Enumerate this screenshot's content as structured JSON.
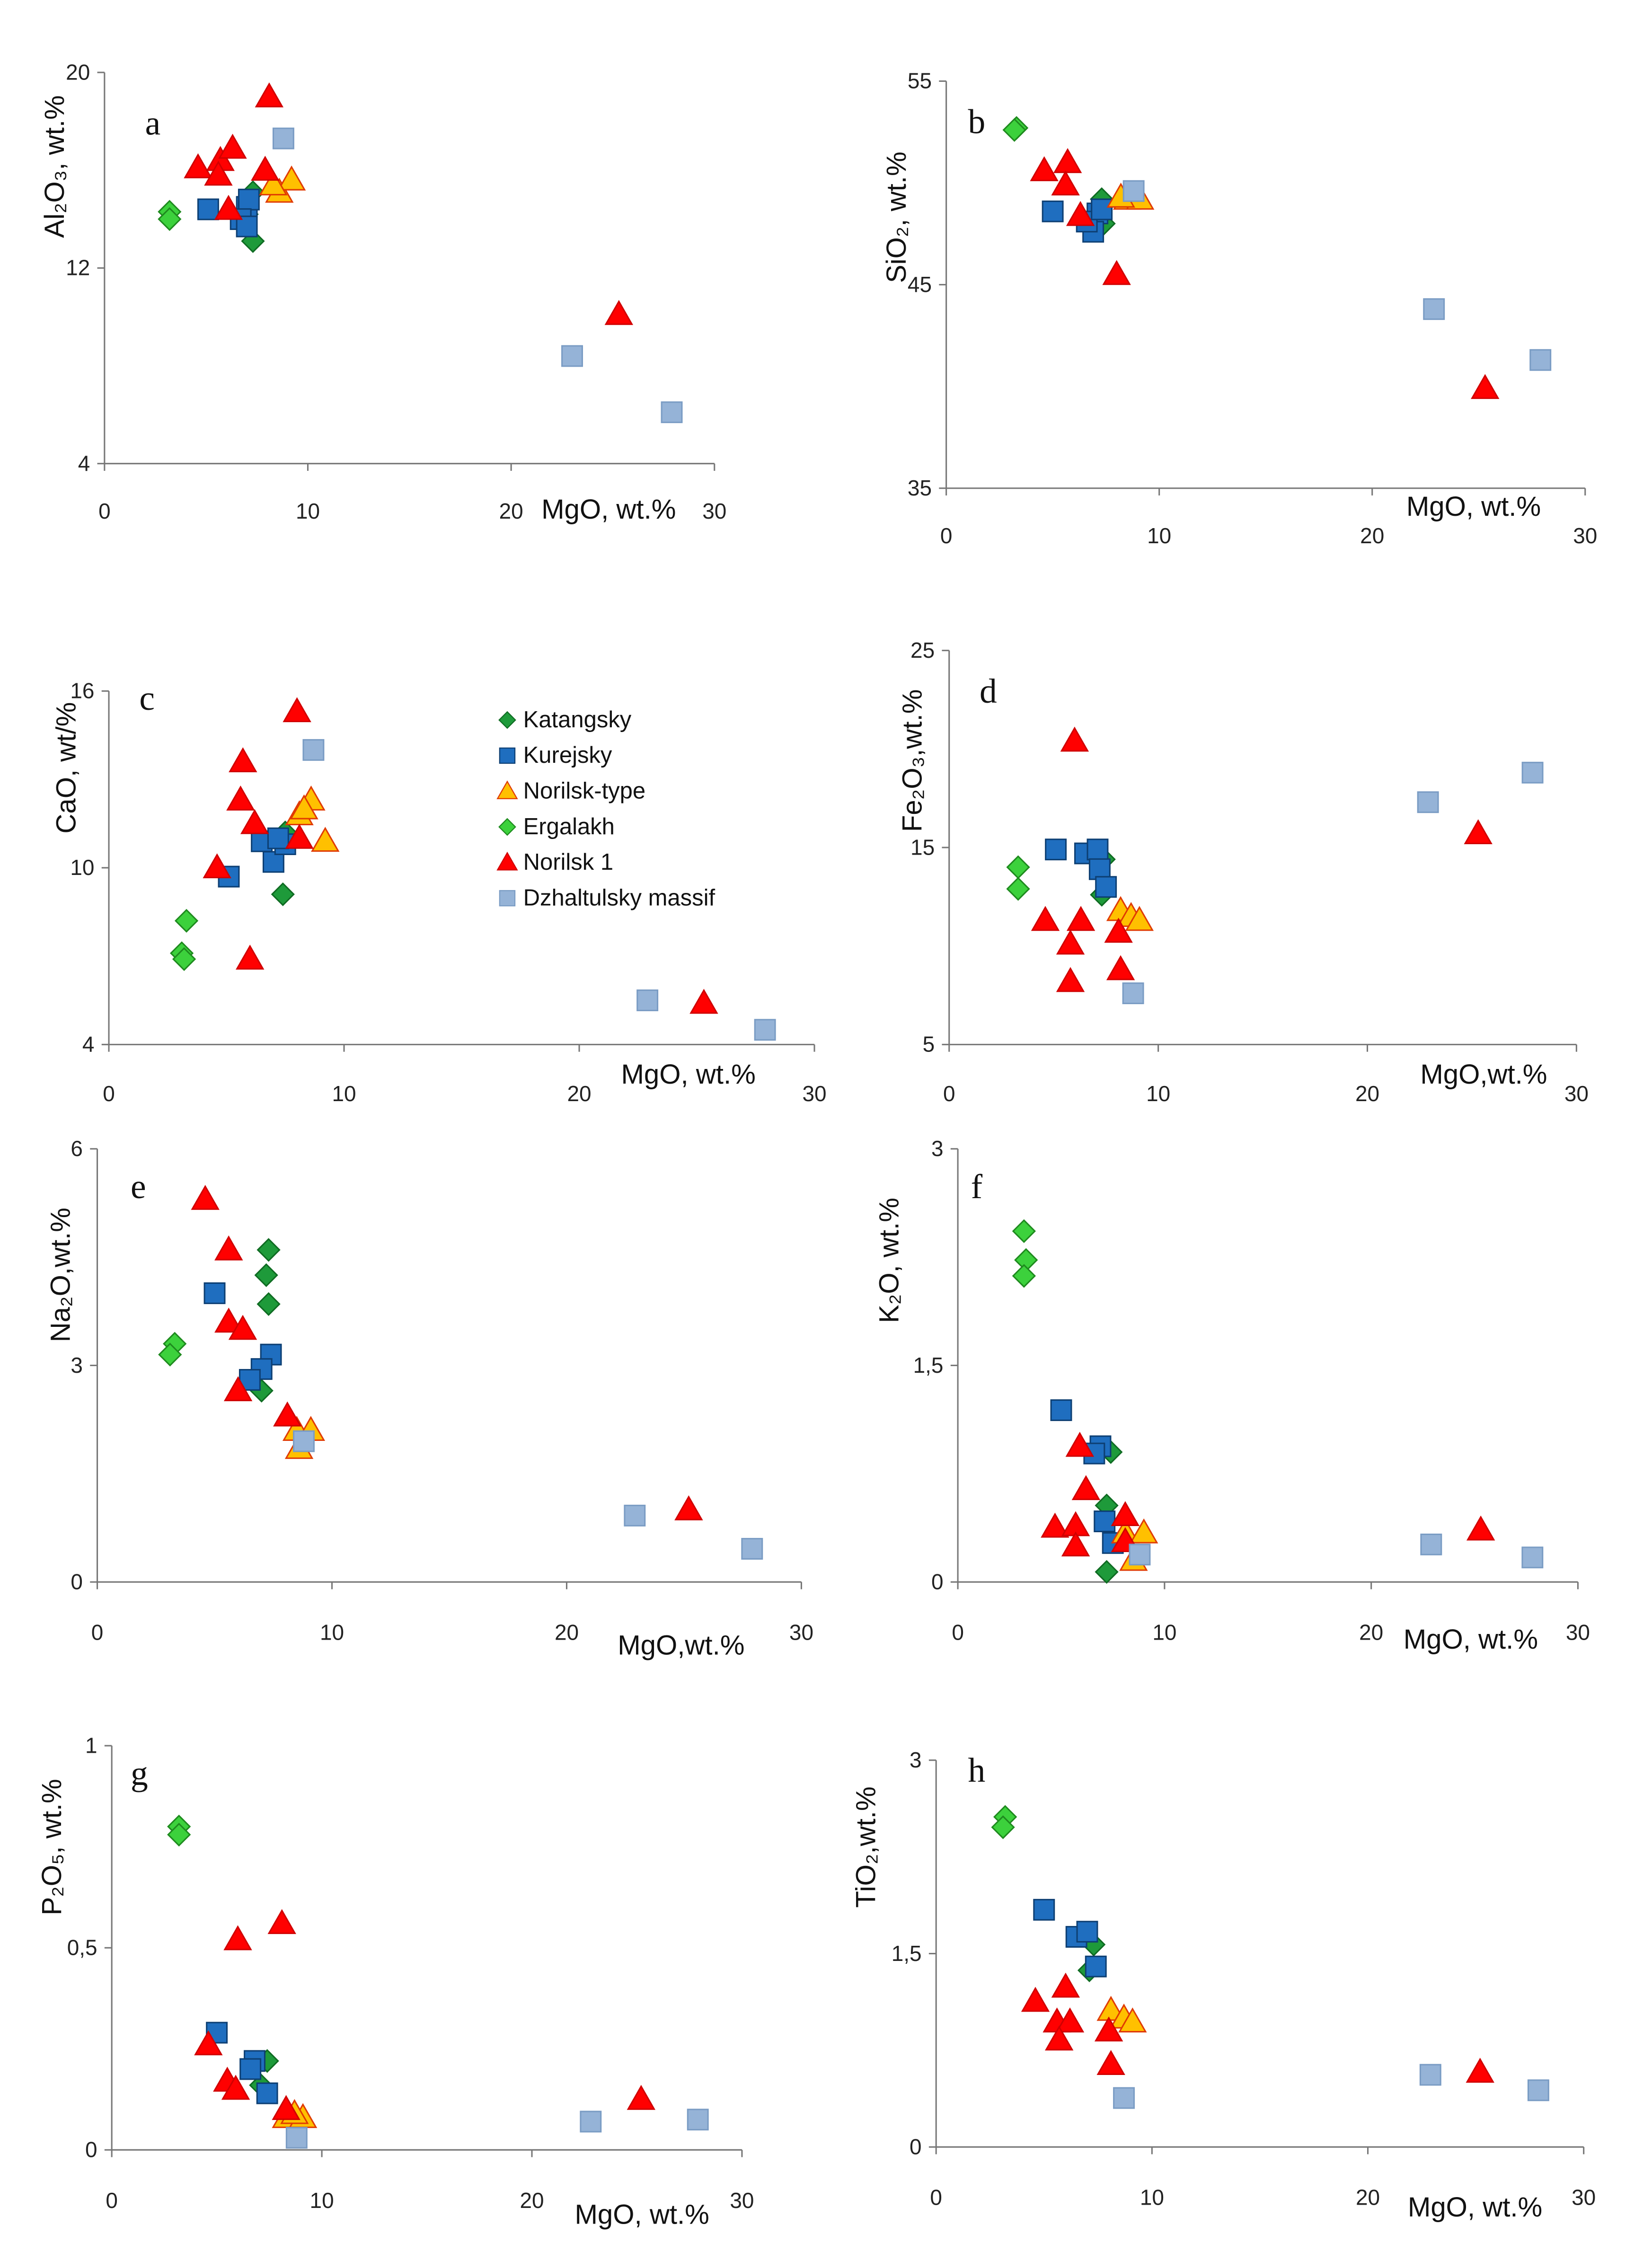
{
  "chart_data": [
    {
      "type": "scatter",
      "letter": "a",
      "ylabel": "Al₂O₃, wt.%",
      "xlabel": "MgO, wt.%",
      "xlim": [
        0,
        30
      ],
      "ylim": [
        4,
        20
      ],
      "xticks": [
        "0",
        "10",
        "20",
        "30"
      ],
      "yticks": [
        "4",
        "12",
        "20"
      ],
      "series": {
        "Katangsky": [
          [
            7.3,
            15.1
          ],
          [
            7.3,
            13.1
          ],
          [
            7.0,
            14.2
          ]
        ],
        "Kurejsky": [
          [
            5.1,
            14.4
          ],
          [
            7.0,
            14.5
          ],
          [
            7.1,
            14.8
          ],
          [
            6.7,
            14.0
          ],
          [
            7.0,
            13.7
          ]
        ],
        "Norilsk-type": [
          [
            8.6,
            15.1
          ],
          [
            9.2,
            15.6
          ],
          [
            8.3,
            15.4
          ]
        ],
        "Ergalakh": [
          [
            3.2,
            14.3
          ],
          [
            3.2,
            14.0
          ]
        ],
        "Norilsk 1": [
          [
            8.1,
            19.0
          ],
          [
            4.6,
            16.1
          ],
          [
            5.7,
            16.4
          ],
          [
            6.3,
            16.9
          ],
          [
            5.6,
            15.8
          ],
          [
            7.9,
            16.0
          ],
          [
            6.1,
            14.4
          ],
          [
            25.3,
            10.1
          ]
        ],
        "Dzhaltulsky massif": [
          [
            8.8,
            17.3
          ],
          [
            23.0,
            8.4
          ],
          [
            27.9,
            6.1
          ]
        ]
      }
    },
    {
      "type": "scatter",
      "letter": "b",
      "ylabel": "SiO₂, wt.%",
      "xlabel": "MgO, wt.%",
      "xlim": [
        0,
        30
      ],
      "ylim": [
        35,
        55
      ],
      "xticks": [
        "0",
        "10",
        "20",
        "30"
      ],
      "yticks": [
        "35",
        "45",
        "55"
      ],
      "series": {
        "Katangsky": [
          [
            7.3,
            49.2
          ],
          [
            7.4,
            48.0
          ]
        ],
        "Kurejsky": [
          [
            5.0,
            48.6
          ],
          [
            7.1,
            48.5
          ],
          [
            6.9,
            47.6
          ],
          [
            6.6,
            48.1
          ],
          [
            7.3,
            48.7
          ]
        ],
        "Norilsk-type": [
          [
            8.5,
            49.2
          ],
          [
            9.1,
            49.2
          ],
          [
            8.2,
            49.3
          ]
        ],
        "Ergalakh": [
          [
            3.3,
            52.7
          ],
          [
            3.2,
            52.6
          ]
        ],
        "Norilsk 1": [
          [
            4.6,
            50.6
          ],
          [
            5.7,
            51.0
          ],
          [
            5.6,
            49.9
          ],
          [
            6.3,
            48.4
          ],
          [
            8.0,
            45.5
          ],
          [
            25.3,
            39.9
          ]
        ],
        "Dzhaltulsky massif": [
          [
            8.8,
            49.6
          ],
          [
            22.9,
            43.8
          ],
          [
            27.9,
            41.3
          ]
        ]
      }
    },
    {
      "type": "scatter",
      "letter": "c",
      "ylabel": "CaO, wt/%",
      "xlabel": "MgO, wt.%",
      "xlim": [
        0,
        30
      ],
      "ylim": [
        4,
        16
      ],
      "xticks": [
        "0",
        "10",
        "20",
        "30"
      ],
      "yticks": [
        "4",
        "10",
        "16"
      ],
      "series": {
        "Katangsky": [
          [
            7.4,
            9.1
          ],
          [
            7.5,
            11.2
          ]
        ],
        "Kurejsky": [
          [
            5.1,
            9.7
          ],
          [
            6.5,
            10.9
          ],
          [
            7.0,
            10.2
          ],
          [
            7.5,
            10.8
          ],
          [
            7.2,
            11.0
          ]
        ],
        "Norilsk-type": [
          [
            8.1,
            11.8
          ],
          [
            8.6,
            12.3
          ],
          [
            9.2,
            10.9
          ],
          [
            8.3,
            12.0
          ]
        ],
        "Ergalakh": [
          [
            3.3,
            8.2
          ],
          [
            3.1,
            7.1
          ],
          [
            3.2,
            6.9
          ]
        ],
        "Norilsk 1": [
          [
            8.0,
            15.3
          ],
          [
            5.7,
            13.6
          ],
          [
            5.6,
            12.3
          ],
          [
            6.2,
            11.5
          ],
          [
            4.6,
            10.0
          ],
          [
            8.1,
            11.0
          ],
          [
            6.0,
            6.9
          ],
          [
            25.3,
            5.4
          ]
        ],
        "Dzhaltulsky massif": [
          [
            8.7,
            14.0
          ],
          [
            22.9,
            5.5
          ],
          [
            27.9,
            4.5
          ]
        ]
      }
    },
    {
      "type": "scatter",
      "letter": "d",
      "ylabel": "Fe₂O₃,wt.%",
      "xlabel": "MgO,wt.%",
      "xlim": [
        0,
        30
      ],
      "ylim": [
        5,
        25
      ],
      "xticks": [
        "0",
        "10",
        "20",
        "30"
      ],
      "yticks": [
        "5",
        "15",
        "25"
      ],
      "series": {
        "Katangsky": [
          [
            7.4,
            14.4
          ],
          [
            7.3,
            12.6
          ]
        ],
        "Kurejsky": [
          [
            5.1,
            14.9
          ],
          [
            6.5,
            14.7
          ],
          [
            7.1,
            14.9
          ],
          [
            7.2,
            13.9
          ],
          [
            7.5,
            13.0
          ]
        ],
        "Norilsk-type": [
          [
            8.2,
            11.8
          ],
          [
            8.7,
            11.5
          ],
          [
            9.1,
            11.3
          ]
        ],
        "Ergalakh": [
          [
            3.3,
            14.0
          ],
          [
            3.3,
            12.9
          ]
        ],
        "Norilsk 1": [
          [
            6.0,
            20.4
          ],
          [
            4.6,
            11.3
          ],
          [
            6.3,
            11.3
          ],
          [
            5.8,
            10.1
          ],
          [
            5.8,
            8.2
          ],
          [
            8.2,
            8.8
          ],
          [
            8.1,
            10.7
          ],
          [
            25.3,
            15.7
          ]
        ],
        "Dzhaltulsky massif": [
          [
            8.8,
            7.6
          ],
          [
            22.9,
            17.3
          ],
          [
            27.9,
            18.8
          ]
        ]
      }
    },
    {
      "type": "scatter",
      "letter": "e",
      "ylabel": "Na₂O,wt.%",
      "xlabel": "MgO,wt.%",
      "xlim": [
        0,
        30
      ],
      "ylim": [
        0,
        6
      ],
      "xticks": [
        "0",
        "10",
        "20",
        "30"
      ],
      "yticks": [
        "0",
        "3",
        "6"
      ],
      "series": {
        "Katangsky": [
          [
            7.3,
            4.6
          ],
          [
            7.2,
            4.25
          ],
          [
            7.3,
            3.85
          ],
          [
            7.0,
            2.65
          ]
        ],
        "Kurejsky": [
          [
            5.0,
            4.0
          ],
          [
            7.4,
            3.15
          ],
          [
            7.0,
            2.95
          ],
          [
            6.5,
            2.8
          ]
        ],
        "Norilsk-type": [
          [
            8.5,
            2.1
          ],
          [
            9.1,
            2.1
          ],
          [
            8.6,
            1.85
          ]
        ],
        "Ergalakh": [
          [
            3.3,
            3.3
          ],
          [
            3.1,
            3.15
          ]
        ],
        "Norilsk 1": [
          [
            4.6,
            5.3
          ],
          [
            5.6,
            4.6
          ],
          [
            5.6,
            3.6
          ],
          [
            6.2,
            3.5
          ],
          [
            6.0,
            2.65
          ],
          [
            8.1,
            2.3
          ],
          [
            25.2,
            1.0
          ]
        ],
        "Dzhaltulsky massif": [
          [
            8.8,
            1.95
          ],
          [
            22.9,
            0.92
          ],
          [
            27.9,
            0.46
          ]
        ]
      }
    },
    {
      "type": "scatter",
      "letter": "f",
      "ylabel": "K₂O, wt.%",
      "xlabel": "MgO, wt.%",
      "xlim": [
        0,
        30
      ],
      "ylim": [
        0,
        3
      ],
      "xticks": [
        "0",
        "10",
        "20",
        "30"
      ],
      "yticks": [
        "0",
        "1,5",
        "3"
      ],
      "series": {
        "Katangsky": [
          [
            7.4,
            0.9
          ],
          [
            7.2,
            0.53
          ],
          [
            7.2,
            0.07
          ]
        ],
        "Kurejsky": [
          [
            5.0,
            1.19
          ],
          [
            6.9,
            0.94
          ],
          [
            6.6,
            0.89
          ],
          [
            7.1,
            0.42
          ],
          [
            7.5,
            0.27
          ]
        ],
        "Norilsk-type": [
          [
            8.1,
            0.34
          ],
          [
            9.0,
            0.34
          ],
          [
            8.5,
            0.15
          ]
        ],
        "Ergalakh": [
          [
            3.2,
            2.43
          ],
          [
            3.3,
            2.23
          ],
          [
            3.2,
            2.12
          ]
        ],
        "Norilsk 1": [
          [
            5.9,
            0.94
          ],
          [
            6.2,
            0.64
          ],
          [
            4.7,
            0.38
          ],
          [
            5.7,
            0.39
          ],
          [
            5.7,
            0.25
          ],
          [
            8.1,
            0.46
          ],
          [
            8.1,
            0.28
          ],
          [
            25.3,
            0.36
          ]
        ],
        "Dzhaltulsky massif": [
          [
            8.8,
            0.19
          ],
          [
            22.9,
            0.26
          ],
          [
            27.8,
            0.17
          ]
        ]
      }
    },
    {
      "type": "scatter",
      "letter": "g",
      "ylabel": "P₂O₅, wt.%",
      "xlabel": "MgO, wt.%",
      "xlim": [
        0,
        30
      ],
      "ylim": [
        0,
        1
      ],
      "xticks": [
        "0",
        "10",
        "20",
        "30"
      ],
      "yticks": [
        "0",
        "0,5",
        "1"
      ],
      "series": {
        "Katangsky": [
          [
            7.4,
            0.22
          ],
          [
            7.1,
            0.16
          ]
        ],
        "Kurejsky": [
          [
            5.0,
            0.29
          ],
          [
            6.8,
            0.22
          ],
          [
            6.6,
            0.2
          ],
          [
            7.4,
            0.14
          ]
        ],
        "Norilsk-type": [
          [
            8.3,
            0.08
          ],
          [
            9.1,
            0.08
          ],
          [
            8.7,
            0.09
          ]
        ],
        "Ergalakh": [
          [
            3.2,
            0.8
          ],
          [
            3.2,
            0.78
          ]
        ],
        "Norilsk 1": [
          [
            6.0,
            0.52
          ],
          [
            8.1,
            0.56
          ],
          [
            4.6,
            0.26
          ],
          [
            5.5,
            0.17
          ],
          [
            5.9,
            0.15
          ],
          [
            8.3,
            0.1
          ],
          [
            25.2,
            0.125
          ]
        ],
        "Dzhaltulsky massif": [
          [
            8.8,
            0.03
          ],
          [
            22.8,
            0.07
          ],
          [
            27.9,
            0.075
          ]
        ]
      }
    },
    {
      "type": "scatter",
      "letter": "h",
      "ylabel": "TiO₂,wt.%",
      "xlabel": "MgO, wt.%",
      "xlim": [
        0,
        30
      ],
      "ylim": [
        0,
        3
      ],
      "xticks": [
        "0",
        "10",
        "20",
        "30"
      ],
      "yticks": [
        "0",
        "1,5",
        "3"
      ],
      "series": {
        "Katangsky": [
          [
            7.3,
            1.57
          ],
          [
            7.1,
            1.37
          ]
        ],
        "Kurejsky": [
          [
            5.0,
            1.84
          ],
          [
            6.5,
            1.63
          ],
          [
            7.0,
            1.67
          ],
          [
            7.4,
            1.4
          ]
        ],
        "Norilsk-type": [
          [
            8.1,
            1.06
          ],
          [
            8.7,
            1.0
          ],
          [
            9.1,
            0.97
          ]
        ],
        "Ergalakh": [
          [
            3.2,
            2.56
          ],
          [
            3.1,
            2.48
          ]
        ],
        "Norilsk 1": [
          [
            4.6,
            1.13
          ],
          [
            6.0,
            1.24
          ],
          [
            5.6,
            0.97
          ],
          [
            6.2,
            0.97
          ],
          [
            5.7,
            0.83
          ],
          [
            8.0,
            0.9
          ],
          [
            8.1,
            0.64
          ],
          [
            25.2,
            0.58
          ]
        ],
        "Dzhaltulsky massif": [
          [
            8.7,
            0.38
          ],
          [
            22.9,
            0.56
          ],
          [
            27.9,
            0.44
          ]
        ]
      }
    }
  ],
  "legend": {
    "items": [
      {
        "name": "Katangsky",
        "marker": "diamond",
        "fill": "#1E9A3A",
        "stroke": "#0F6B22"
      },
      {
        "name": "Kurejsky",
        "marker": "square",
        "fill": "#1F6EBF",
        "stroke": "#0D3F73"
      },
      {
        "name": "Norilsk-type",
        "marker": "triangle",
        "fill": "#FFC000",
        "stroke": "#E03A00"
      },
      {
        "name": "Ergalakh",
        "marker": "diamond",
        "fill": "#3CD13C",
        "stroke": "#1E8A1E"
      },
      {
        "name": "Norilsk 1",
        "marker": "triangle",
        "fill": "#FF0000",
        "stroke": "#D00000"
      },
      {
        "name": "Dzhaltulsky massif",
        "marker": "square",
        "fill": "#95B3D7",
        "stroke": "#7A9CC4"
      }
    ]
  }
}
